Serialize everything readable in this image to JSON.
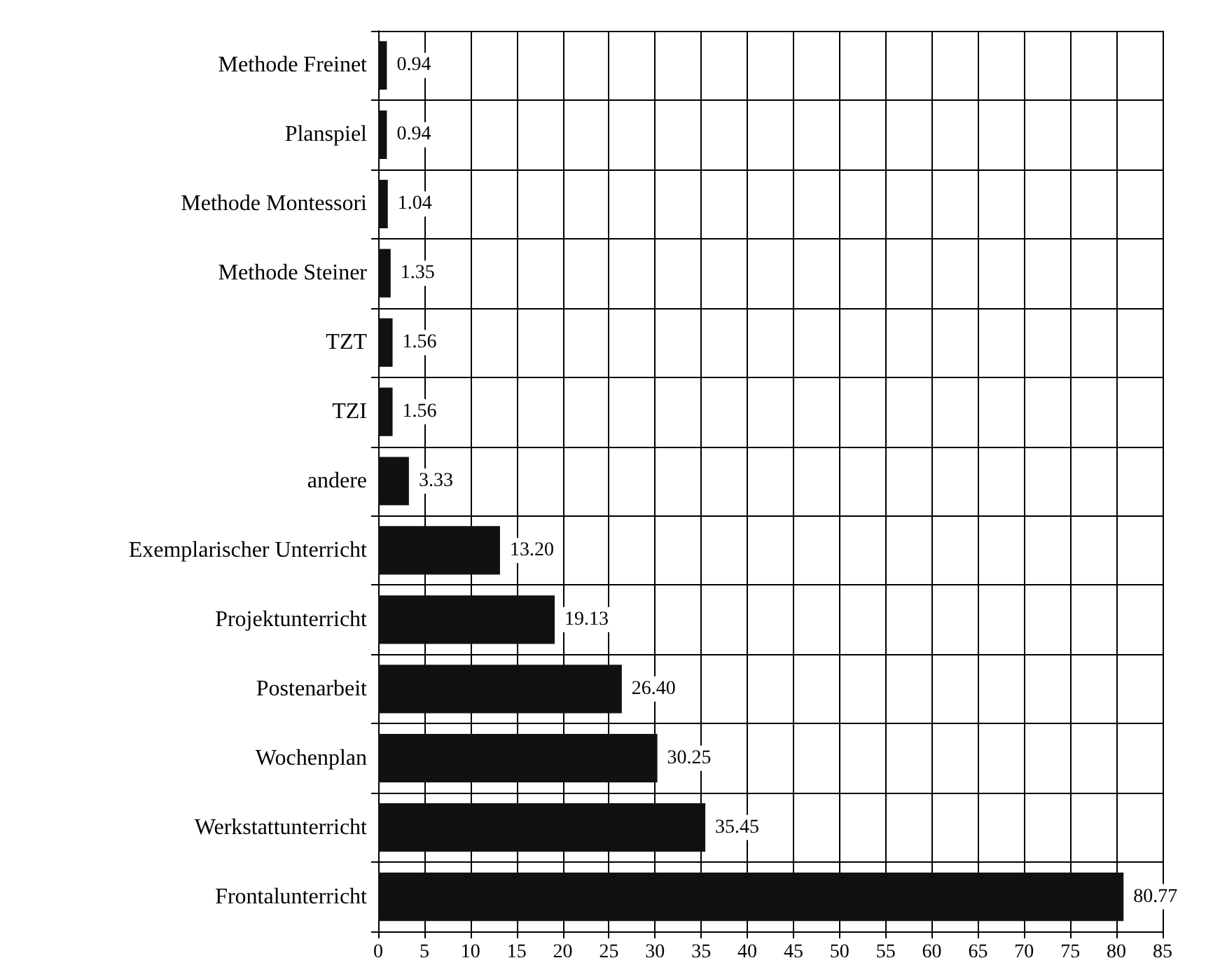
{
  "chart_data": {
    "type": "bar",
    "orientation": "horizontal",
    "categories": [
      "Methode Freinet",
      "Planspiel",
      "Methode Montessori",
      "Methode Steiner",
      "TZT",
      "TZI",
      "andere",
      "Exemplarischer Unterricht",
      "Projektunterricht",
      "Postenarbeit",
      "Wochenplan",
      "Werkstattunterricht",
      "Frontalunterricht"
    ],
    "values": [
      0.94,
      0.94,
      1.04,
      1.35,
      1.56,
      1.56,
      3.33,
      13.2,
      19.13,
      26.4,
      30.25,
      35.45,
      80.77
    ],
    "value_labels": [
      "0.94",
      "0.94",
      "1.04",
      "1.35",
      "1.56",
      "1.56",
      "3.33",
      "13.20",
      "19.13",
      "26.40",
      "30.25",
      "35.45",
      "80.77"
    ],
    "color": "#111111",
    "xlim": [
      0,
      85
    ],
    "xticks": [
      0,
      5,
      10,
      15,
      20,
      25,
      30,
      35,
      40,
      45,
      50,
      55,
      60,
      65,
      70,
      75,
      80,
      85
    ],
    "grid": true
  }
}
